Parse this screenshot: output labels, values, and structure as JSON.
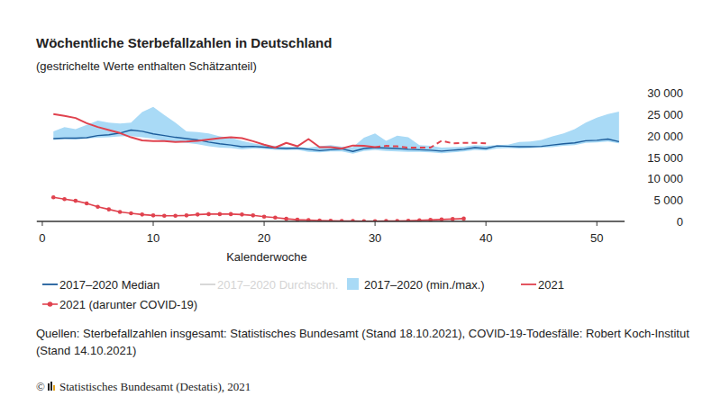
{
  "chart_data": {
    "type": "line",
    "title": "Wöchentliche Sterbefallzahlen in Deutschland",
    "subtitle": "(gestrichelte Werte enthalten Schätzanteil)",
    "x_label": "Kalenderwoche",
    "source": "Quellen: Sterbefallzahlen insgesamt: Statistisches Bundesamt (Stand 18.10.2021), COVID-19-Todesfälle: Robert Koch-Institut (Stand 14.10.2021)",
    "copyright_sign": "©",
    "copyright": "Statistisches Bundesamt (Destatis), 2021",
    "x": [
      1,
      2,
      3,
      4,
      5,
      6,
      7,
      8,
      9,
      10,
      11,
      12,
      13,
      14,
      15,
      16,
      17,
      18,
      19,
      20,
      21,
      22,
      23,
      24,
      25,
      26,
      27,
      28,
      29,
      30,
      31,
      32,
      33,
      34,
      35,
      36,
      37,
      38,
      39,
      40,
      41,
      42,
      43,
      44,
      45,
      46,
      47,
      48,
      49,
      50,
      51,
      52
    ],
    "xlim": [
      -0.5,
      52.5
    ],
    "xticks": [
      0,
      10,
      20,
      30,
      40,
      50
    ],
    "ylim": [
      0,
      30000
    ],
    "yticks": [
      0,
      {
        "value": 5000,
        "label": "5 000"
      },
      {
        "value": 10000,
        "label": "10 000"
      },
      {
        "value": 15000,
        "label": "15 000"
      },
      {
        "value": 20000,
        "label": "20 000"
      },
      {
        "value": 25000,
        "label": "25 000"
      },
      {
        "value": 30000,
        "label": "30 000"
      }
    ],
    "grid": false,
    "legend": "bottom",
    "series": [
      {
        "name": "2017–2020 Median",
        "type": "line",
        "color": "#1d5d9b",
        "values": [
          19300,
          19400,
          19400,
          19500,
          20000,
          20200,
          20600,
          21300,
          21000,
          20400,
          20000,
          19600,
          19300,
          19000,
          18500,
          18100,
          17800,
          17400,
          17500,
          17300,
          17100,
          17000,
          17100,
          16800,
          16500,
          16700,
          16900,
          16300,
          17000,
          17200,
          17100,
          17000,
          16800,
          16700,
          16600,
          16400,
          16600,
          16800,
          17200,
          17000,
          17600,
          17500,
          17400,
          17400,
          17500,
          17800,
          18100,
          18300,
          18800,
          18900,
          19200,
          18600
        ]
      },
      {
        "name": "2017–2020 Durchschn.",
        "type": "line",
        "color": "#d4d4d4",
        "values": [
          null,
          null,
          null,
          null,
          null,
          null,
          null,
          null,
          null,
          null,
          null,
          null,
          null,
          null,
          null,
          null,
          null,
          null,
          null,
          null,
          null,
          null,
          null,
          null,
          null,
          null,
          null,
          null,
          null,
          null,
          null,
          null,
          null,
          null,
          null,
          null,
          null,
          null,
          null,
          null,
          null,
          null,
          null,
          null,
          null,
          null,
          null,
          null,
          null,
          null,
          null,
          null
        ]
      },
      {
        "name": "2017–2020 (min./max.)",
        "type": "band",
        "color": "#a9daf6",
        "low": [
          19000,
          19200,
          19100,
          19300,
          19500,
          19600,
          19800,
          19900,
          19600,
          19300,
          18800,
          18600,
          18300,
          18000,
          17500,
          17200,
          17100,
          16800,
          17000,
          16900,
          16700,
          16600,
          16700,
          16200,
          16100,
          16300,
          16300,
          15800,
          16400,
          16600,
          16400,
          16300,
          16200,
          16200,
          16100,
          15900,
          16100,
          16300,
          16600,
          16500,
          17000,
          17100,
          17000,
          17100,
          17200,
          17300,
          17600,
          17800,
          18300,
          18400,
          18600,
          18200
        ],
        "high": [
          21000,
          22000,
          21500,
          22500,
          23500,
          23000,
          22800,
          23000,
          25500,
          26700,
          24800,
          23000,
          21000,
          20800,
          20500,
          19800,
          19500,
          18800,
          18200,
          17800,
          17600,
          17400,
          17300,
          17200,
          17500,
          17800,
          17400,
          17300,
          19500,
          20500,
          18800,
          20000,
          19600,
          17800,
          17600,
          17200,
          17300,
          17400,
          17800,
          17600,
          17800,
          17900,
          18500,
          18600,
          19000,
          19800,
          20500,
          21500,
          23000,
          24200,
          25000,
          25600
        ]
      },
      {
        "name": "2021",
        "type": "line",
        "color": "#e0424e",
        "values": [
          25000,
          24600,
          24100,
          22900,
          22000,
          21300,
          20600,
          19600,
          18900,
          18700,
          18700,
          18500,
          18600,
          18800,
          19100,
          19400,
          19600,
          19400,
          18700,
          17900,
          17200,
          18300,
          17500,
          19200,
          17300,
          17300,
          17000,
          17700,
          17600,
          17300,
          17600,
          17500,
          17200,
          17200,
          17200,
          18800,
          18200,
          18300,
          18300,
          18200,
          null,
          null,
          null,
          null,
          null,
          null,
          null,
          null,
          null,
          null,
          null,
          null
        ],
        "estimated": [
          false,
          false,
          false,
          false,
          false,
          false,
          false,
          false,
          false,
          false,
          false,
          false,
          false,
          false,
          false,
          false,
          false,
          false,
          false,
          false,
          false,
          false,
          false,
          false,
          false,
          false,
          false,
          false,
          false,
          false,
          true,
          true,
          true,
          true,
          true,
          true,
          true,
          true,
          true,
          true,
          false,
          false,
          false,
          false,
          false,
          false,
          false,
          false,
          false,
          false,
          false,
          false
        ]
      },
      {
        "name": "2021 (darunter COVID-19)",
        "type": "line",
        "color": "#e0424e",
        "marker": "circle",
        "values": [
          5600,
          5200,
          4800,
          4200,
          3400,
          2800,
          2200,
          1900,
          1600,
          1400,
          1300,
          1300,
          1400,
          1600,
          1700,
          1700,
          1700,
          1600,
          1400,
          1100,
          900,
          600,
          400,
          300,
          200,
          150,
          100,
          70,
          60,
          60,
          70,
          100,
          150,
          250,
          350,
          450,
          550,
          650,
          null,
          null,
          null,
          null,
          null,
          null,
          null,
          null,
          null,
          null,
          null,
          null,
          null,
          null
        ]
      }
    ]
  }
}
